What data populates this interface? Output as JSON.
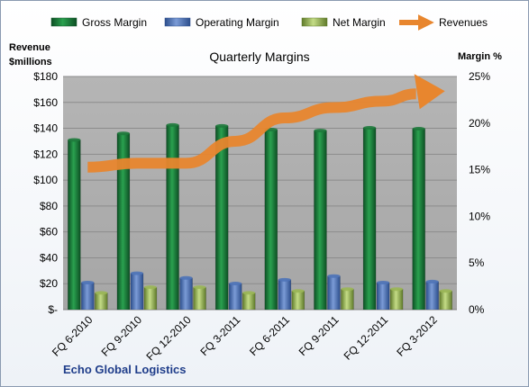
{
  "chart_data": {
    "type": "bar",
    "title": "Quarterly Margins",
    "left_axis_label_line1": "Revenue",
    "left_axis_label_line2": "$millions",
    "right_axis_label": "Margin %",
    "footer": "Echo Global Logistics",
    "categories": [
      "FQ 6-2010",
      "FQ 9-2010",
      "FQ 12-2010",
      "FQ 3-2011",
      "FQ 6-2011",
      "FQ 9-2011",
      "FQ 12-2011",
      "FQ 3-2012"
    ],
    "left_ticks": [
      "$-",
      "$20",
      "$40",
      "$60",
      "$80",
      "$100",
      "$120",
      "$140",
      "$160",
      "$180"
    ],
    "right_ticks": [
      "0%",
      "5%",
      "10%",
      "15%",
      "20%",
      "25%"
    ],
    "left_ylim": [
      0,
      180
    ],
    "right_ylim": [
      0,
      25
    ],
    "series": [
      {
        "name": "Gross Margin",
        "axis": "right",
        "color": "#1e7a3c",
        "values": [
          18.2,
          18.9,
          19.8,
          19.7,
          19.3,
          19.2,
          19.5,
          19.4
        ]
      },
      {
        "name": "Operating Margin",
        "axis": "right",
        "color": "#4f74b8",
        "values": [
          2.9,
          3.9,
          3.4,
          2.8,
          3.2,
          3.6,
          2.9,
          3.0
        ]
      },
      {
        "name": "Net Margin",
        "axis": "right",
        "color": "#9bb757",
        "values": [
          1.8,
          2.4,
          2.4,
          1.8,
          2.0,
          2.2,
          2.2,
          2.0
        ]
      },
      {
        "name": "Revenues",
        "axis": "left",
        "type": "line",
        "color": "#e8862e",
        "values": [
          110,
          113,
          113,
          130,
          148,
          156,
          161,
          168
        ]
      }
    ],
    "grid": true,
    "legend_position": "top"
  }
}
